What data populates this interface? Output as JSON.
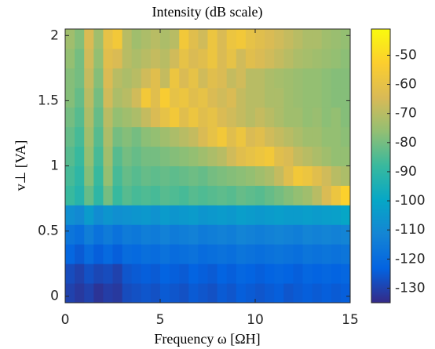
{
  "chart_data": {
    "type": "heatmap",
    "title": "Intensity (dB scale)",
    "x_label": "Frequency ω [ΩH]",
    "y_label": "v⊥ [VA]",
    "xlim": [
      0,
      15
    ],
    "xticks": [
      0,
      5,
      10,
      15
    ],
    "ylim": [
      -0.05,
      2.05
    ],
    "yticks": [
      0,
      0.5,
      1,
      1.5,
      2
    ],
    "clim": [
      -135,
      -41
    ],
    "colorbar_ticks": [
      -50,
      -60,
      -70,
      -80,
      -90,
      -100,
      -110,
      -120,
      -130
    ],
    "colormap": [
      "#352a87",
      "#0363e1",
      "#1485d4",
      "#06a7c6",
      "#38b99e",
      "#92bf73",
      "#d9ba56",
      "#fcce2e",
      "#f9fb0e"
    ],
    "values": [
      [
        -130,
        -132,
        -130,
        -133,
        -131,
        -132,
        -128,
        -127,
        -126,
        -127,
        -125,
        -126,
        -127,
        -125,
        -126,
        -127,
        -125,
        -126,
        -124,
        -125,
        -126,
        -125,
        -124,
        -126,
        -125,
        -124,
        -125,
        -124,
        -125,
        -124
      ],
      [
        -128,
        -130,
        -127,
        -129,
        -128,
        -130,
        -126,
        -125,
        -124,
        -125,
        -123,
        -124,
        -125,
        -123,
        -124,
        -125,
        -123,
        -124,
        -122,
        -123,
        -124,
        -123,
        -122,
        -123,
        -124,
        -122,
        -123,
        -122,
        -123,
        -122
      ],
      [
        -122,
        -125,
        -120,
        -124,
        -121,
        -124,
        -120,
        -121,
        -119,
        -120,
        -118,
        -120,
        -119,
        -118,
        -120,
        -119,
        -118,
        -119,
        -117,
        -118,
        -119,
        -118,
        -117,
        -118,
        -119,
        -117,
        -118,
        -117,
        -118,
        -117
      ],
      [
        -117,
        -119,
        -114,
        -118,
        -115,
        -118,
        -115,
        -116,
        -114,
        -115,
        -113,
        -115,
        -114,
        -113,
        -115,
        -114,
        -113,
        -114,
        -112,
        -113,
        -114,
        -113,
        -112,
        -113,
        -114,
        -112,
        -113,
        -112,
        -113,
        -112
      ],
      [
        -108,
        -110,
        -104,
        -109,
        -106,
        -108,
        -107,
        -106,
        -105,
        -107,
        -104,
        -106,
        -105,
        -104,
        -106,
        -105,
        -104,
        -105,
        -103,
        -104,
        -105,
        -104,
        -103,
        -104,
        -104,
        -103,
        -104,
        -103,
        -102,
        -100
      ],
      [
        -88,
        -92,
        -82,
        -90,
        -80,
        -88,
        -84,
        -86,
        -85,
        -86,
        -84,
        -85,
        -86,
        -84,
        -85,
        -84,
        -83,
        -84,
        -82,
        -83,
        -84,
        -82,
        -80,
        -78,
        -76,
        -74,
        -70,
        -64,
        -58,
        -52
      ],
      [
        -86,
        -90,
        -78,
        -88,
        -76,
        -86,
        -82,
        -84,
        -82,
        -83,
        -82,
        -83,
        -82,
        -81,
        -82,
        -80,
        -79,
        -78,
        -77,
        -76,
        -74,
        -72,
        -68,
        -62,
        -56,
        -58,
        -62,
        -66,
        -70,
        -72
      ],
      [
        -84,
        -88,
        -76,
        -86,
        -74,
        -84,
        -80,
        -82,
        -80,
        -80,
        -79,
        -78,
        -77,
        -76,
        -74,
        -72,
        -70,
        -66,
        -62,
        -60,
        -58,
        -56,
        -62,
        -64,
        -68,
        -70,
        -72,
        -74,
        -76,
        -76
      ],
      [
        -82,
        -86,
        -74,
        -84,
        -72,
        -80,
        -78,
        -80,
        -77,
        -76,
        -74,
        -72,
        -70,
        -68,
        -64,
        -60,
        -56,
        -62,
        -58,
        -64,
        -62,
        -66,
        -68,
        -70,
        -72,
        -74,
        -74,
        -76,
        -76,
        -77
      ],
      [
        -80,
        -84,
        -72,
        -82,
        -70,
        -76,
        -74,
        -72,
        -68,
        -64,
        -60,
        -56,
        -62,
        -58,
        -62,
        -60,
        -64,
        -66,
        -68,
        -70,
        -68,
        -70,
        -72,
        -74,
        -74,
        -76,
        -75,
        -77,
        -76,
        -78
      ],
      [
        -78,
        -82,
        -70,
        -80,
        -66,
        -72,
        -70,
        -66,
        -56,
        -62,
        -54,
        -60,
        -58,
        -62,
        -60,
        -64,
        -66,
        -64,
        -68,
        -70,
        -70,
        -72,
        -72,
        -74,
        -75,
        -76,
        -76,
        -77,
        -78,
        -78
      ],
      [
        -78,
        -80,
        -68,
        -78,
        -64,
        -70,
        -72,
        -70,
        -66,
        -62,
        -68,
        -58,
        -64,
        -60,
        -66,
        -62,
        -64,
        -68,
        -66,
        -70,
        -70,
        -72,
        -73,
        -74,
        -75,
        -76,
        -76,
        -77,
        -78,
        -78
      ],
      [
        -76,
        -80,
        -66,
        -76,
        -62,
        -64,
        -70,
        -72,
        -70,
        -68,
        -70,
        -66,
        -60,
        -64,
        -62,
        -58,
        -64,
        -60,
        -66,
        -62,
        -64,
        -66,
        -68,
        -70,
        -72,
        -73,
        -74,
        -75,
        -76,
        -77
      ],
      [
        -74,
        -78,
        -64,
        -74,
        -60,
        -56,
        -70,
        -74,
        -72,
        -70,
        -72,
        -70,
        -56,
        -62,
        -66,
        -58,
        -64,
        -58,
        -56,
        -60,
        -62,
        -64,
        -66,
        -68,
        -70,
        -72,
        -72,
        -74,
        -75,
        -76
      ]
    ]
  }
}
